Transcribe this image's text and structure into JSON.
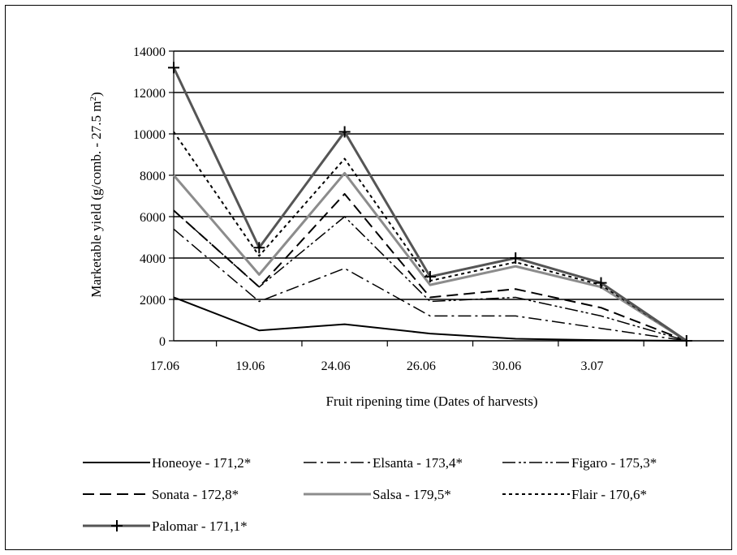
{
  "chart_data": {
    "type": "line",
    "title": "",
    "xlabel": "Fruit ripening time (Dates of harvests)",
    "ylabel": "Marketable yield (g/comb. - 27.5 m",
    "ylabel_superscript": "2",
    "ylabel_suffix": ")",
    "categories": [
      "17.06",
      "19.06",
      "24.06",
      "26.06",
      "30.06",
      "3.07",
      ""
    ],
    "ylim": [
      0,
      14000
    ],
    "yticks": [
      0,
      2000,
      4000,
      6000,
      8000,
      10000,
      12000,
      14000
    ],
    "grid": true,
    "legend_position": "bottom",
    "series": [
      {
        "name": "Honeoye - 171,2*",
        "values": [
          2100,
          500,
          800,
          350,
          100,
          30,
          0
        ],
        "color": "#000000",
        "dash": "",
        "width": 2,
        "marker": "none"
      },
      {
        "name": "Elsanta - 173,4*",
        "values": [
          5400,
          1900,
          3500,
          1200,
          1200,
          600,
          0
        ],
        "color": "#000000",
        "dash": "16,5,3,5",
        "width": 1.5,
        "marker": "none"
      },
      {
        "name": "Figaro - 175,3*",
        "values": [
          6300,
          2600,
          6000,
          1900,
          2100,
          1200,
          0
        ],
        "color": "#000000",
        "dash": "16,4,3,3,3,4",
        "width": 1.5,
        "marker": "none"
      },
      {
        "name": "Sonata - 172,8*",
        "values": [
          6300,
          2600,
          7100,
          2100,
          2500,
          1600,
          0
        ],
        "color": "#000000",
        "dash": "14,7",
        "width": 2,
        "marker": "none"
      },
      {
        "name": "Salsa - 179,5*",
        "values": [
          8000,
          3200,
          8100,
          2700,
          3600,
          2600,
          0
        ],
        "color": "#8c8c8c",
        "dash": "",
        "width": 3,
        "marker": "none"
      },
      {
        "name": "Flair - 170,6*",
        "values": [
          10100,
          4100,
          8800,
          2900,
          3800,
          2700,
          0
        ],
        "color": "#000000",
        "dash": "4,4",
        "width": 2,
        "marker": "none"
      },
      {
        "name": "Palomar - 171,1*",
        "values": [
          13200,
          4500,
          10100,
          3100,
          4000,
          2800,
          0
        ],
        "color": "#555555",
        "dash": "",
        "width": 3,
        "marker": "plus"
      }
    ]
  }
}
